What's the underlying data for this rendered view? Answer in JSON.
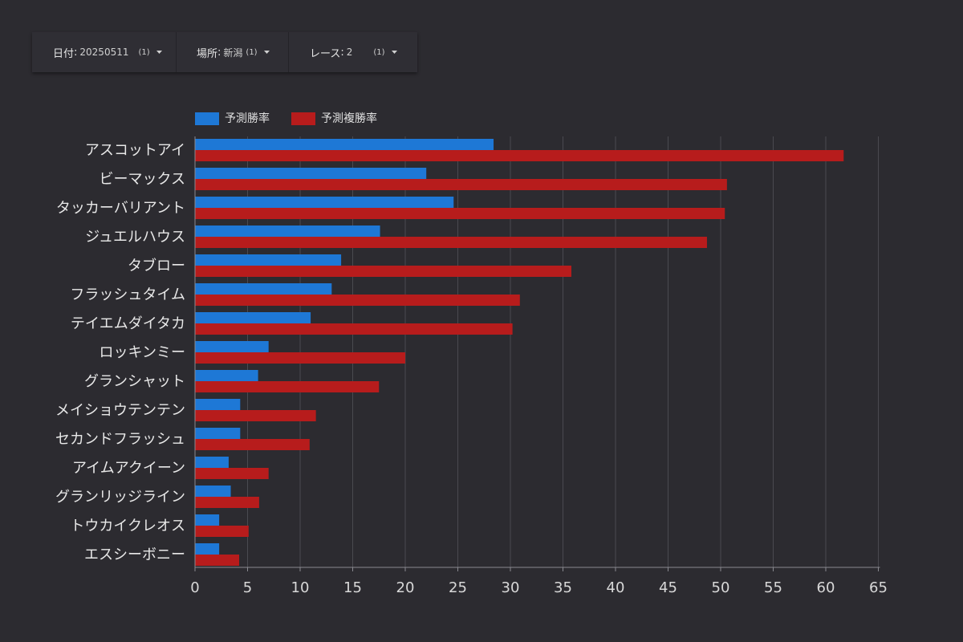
{
  "filters": [
    {
      "label": "日付",
      "value": "20250511",
      "count": "(1)"
    },
    {
      "label": "場所",
      "value": "新潟",
      "count": "(1)"
    },
    {
      "label": "レース",
      "value": "2",
      "count": "(1)"
    }
  ],
  "colors": {
    "win": "#1e78d6",
    "place": "#b71c1c",
    "background": "#2c2b30",
    "grid": "#4a4a50"
  },
  "chart_data": {
    "type": "bar",
    "orientation": "horizontal",
    "categories": [
      "アスコットアイ",
      "ビーマックス",
      "タッカーバリアント",
      "ジュエルハウス",
      "タブロー",
      "フラッシュタイム",
      "テイエムダイタカ",
      "ロッキンミー",
      "グランシャット",
      "メイショウテンテン",
      "セカンドフラッシュ",
      "アイムアクイーン",
      "グランリッジライン",
      "トウカイクレオス",
      "エスシーボニー"
    ],
    "series": [
      {
        "name": "予測勝率",
        "values": [
          28.4,
          22.0,
          24.6,
          17.6,
          13.9,
          13.0,
          11.0,
          7.0,
          6.0,
          4.3,
          4.3,
          3.2,
          3.4,
          2.3,
          2.3
        ]
      },
      {
        "name": "予測複勝率",
        "values": [
          61.7,
          50.6,
          50.4,
          48.7,
          35.8,
          30.9,
          30.2,
          20.0,
          17.5,
          11.5,
          10.9,
          7.0,
          6.1,
          5.1,
          4.2
        ]
      }
    ],
    "xlim": [
      0,
      65
    ],
    "xticks": [
      "0",
      "5",
      "10",
      "15",
      "20",
      "25",
      "30",
      "35",
      "40",
      "45",
      "50",
      "55",
      "60",
      "65"
    ],
    "legend": "top-left",
    "grid": true
  }
}
